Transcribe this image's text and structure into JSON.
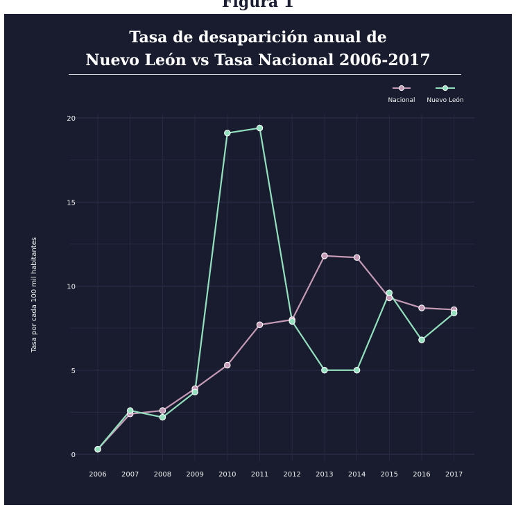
{
  "top_fragment": "Figura 1",
  "chart_data": {
    "type": "line",
    "title_line1": "Tasa de desaparición anual de",
    "title_line2": "Nuevo León vs Tasa Nacional 2006-2017",
    "ylabel": "Tasa por cada 100 mil habitantes",
    "xlabel": "",
    "categories": [
      "2006",
      "2007",
      "2008",
      "2009",
      "2010",
      "2011",
      "2012",
      "2013",
      "2014",
      "2015",
      "2016",
      "2017"
    ],
    "ylim": [
      0,
      20
    ],
    "yticks": [
      0,
      5,
      10,
      15,
      20
    ],
    "legend_position": "top-right",
    "grid": true,
    "series": [
      {
        "name": "Nacional",
        "color": "#c49ab6",
        "values": [
          0.3,
          2.4,
          2.6,
          3.9,
          5.3,
          7.7,
          8.0,
          11.8,
          11.7,
          9.3,
          8.7,
          8.6
        ]
      },
      {
        "name": "Nuevo León",
        "color": "#93e0be",
        "values": [
          0.3,
          2.6,
          2.2,
          3.7,
          19.1,
          19.4,
          7.9,
          5.0,
          5.0,
          9.6,
          6.8,
          8.4
        ]
      }
    ]
  }
}
